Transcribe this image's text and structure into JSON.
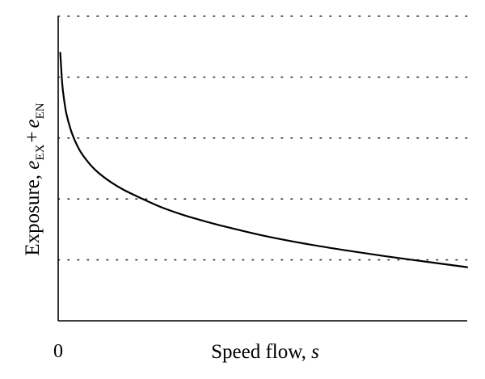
{
  "chart_data": {
    "type": "line",
    "title": "",
    "xlabel": {
      "text": "Speed flow, ",
      "var": "s"
    },
    "ylabel": {
      "text": "Exposure, ",
      "term1": "e",
      "sub1": "EX",
      "plus": "+",
      "term2": "e",
      "sub2": "EN"
    },
    "x_tick_labels": [
      "0"
    ],
    "xlim": [
      0,
      10
    ],
    "ylim": [
      0,
      5
    ],
    "grid": {
      "y": "dotted",
      "x": false
    },
    "series": [
      {
        "x": [
          0.05,
          0.1,
          0.15,
          0.2,
          0.3,
          0.4,
          0.5,
          0.6,
          0.8,
          1.0,
          1.3,
          1.6,
          2.0,
          2.5,
          3.0,
          3.5,
          4.0,
          5.0,
          6.0,
          7.0,
          8.0,
          9.0,
          10.0
        ],
        "y": [
          4.4,
          3.88,
          3.6,
          3.4,
          3.15,
          2.97,
          2.83,
          2.72,
          2.55,
          2.42,
          2.27,
          2.15,
          2.02,
          1.87,
          1.75,
          1.65,
          1.56,
          1.4,
          1.27,
          1.16,
          1.06,
          0.97,
          0.88
        ]
      }
    ]
  }
}
